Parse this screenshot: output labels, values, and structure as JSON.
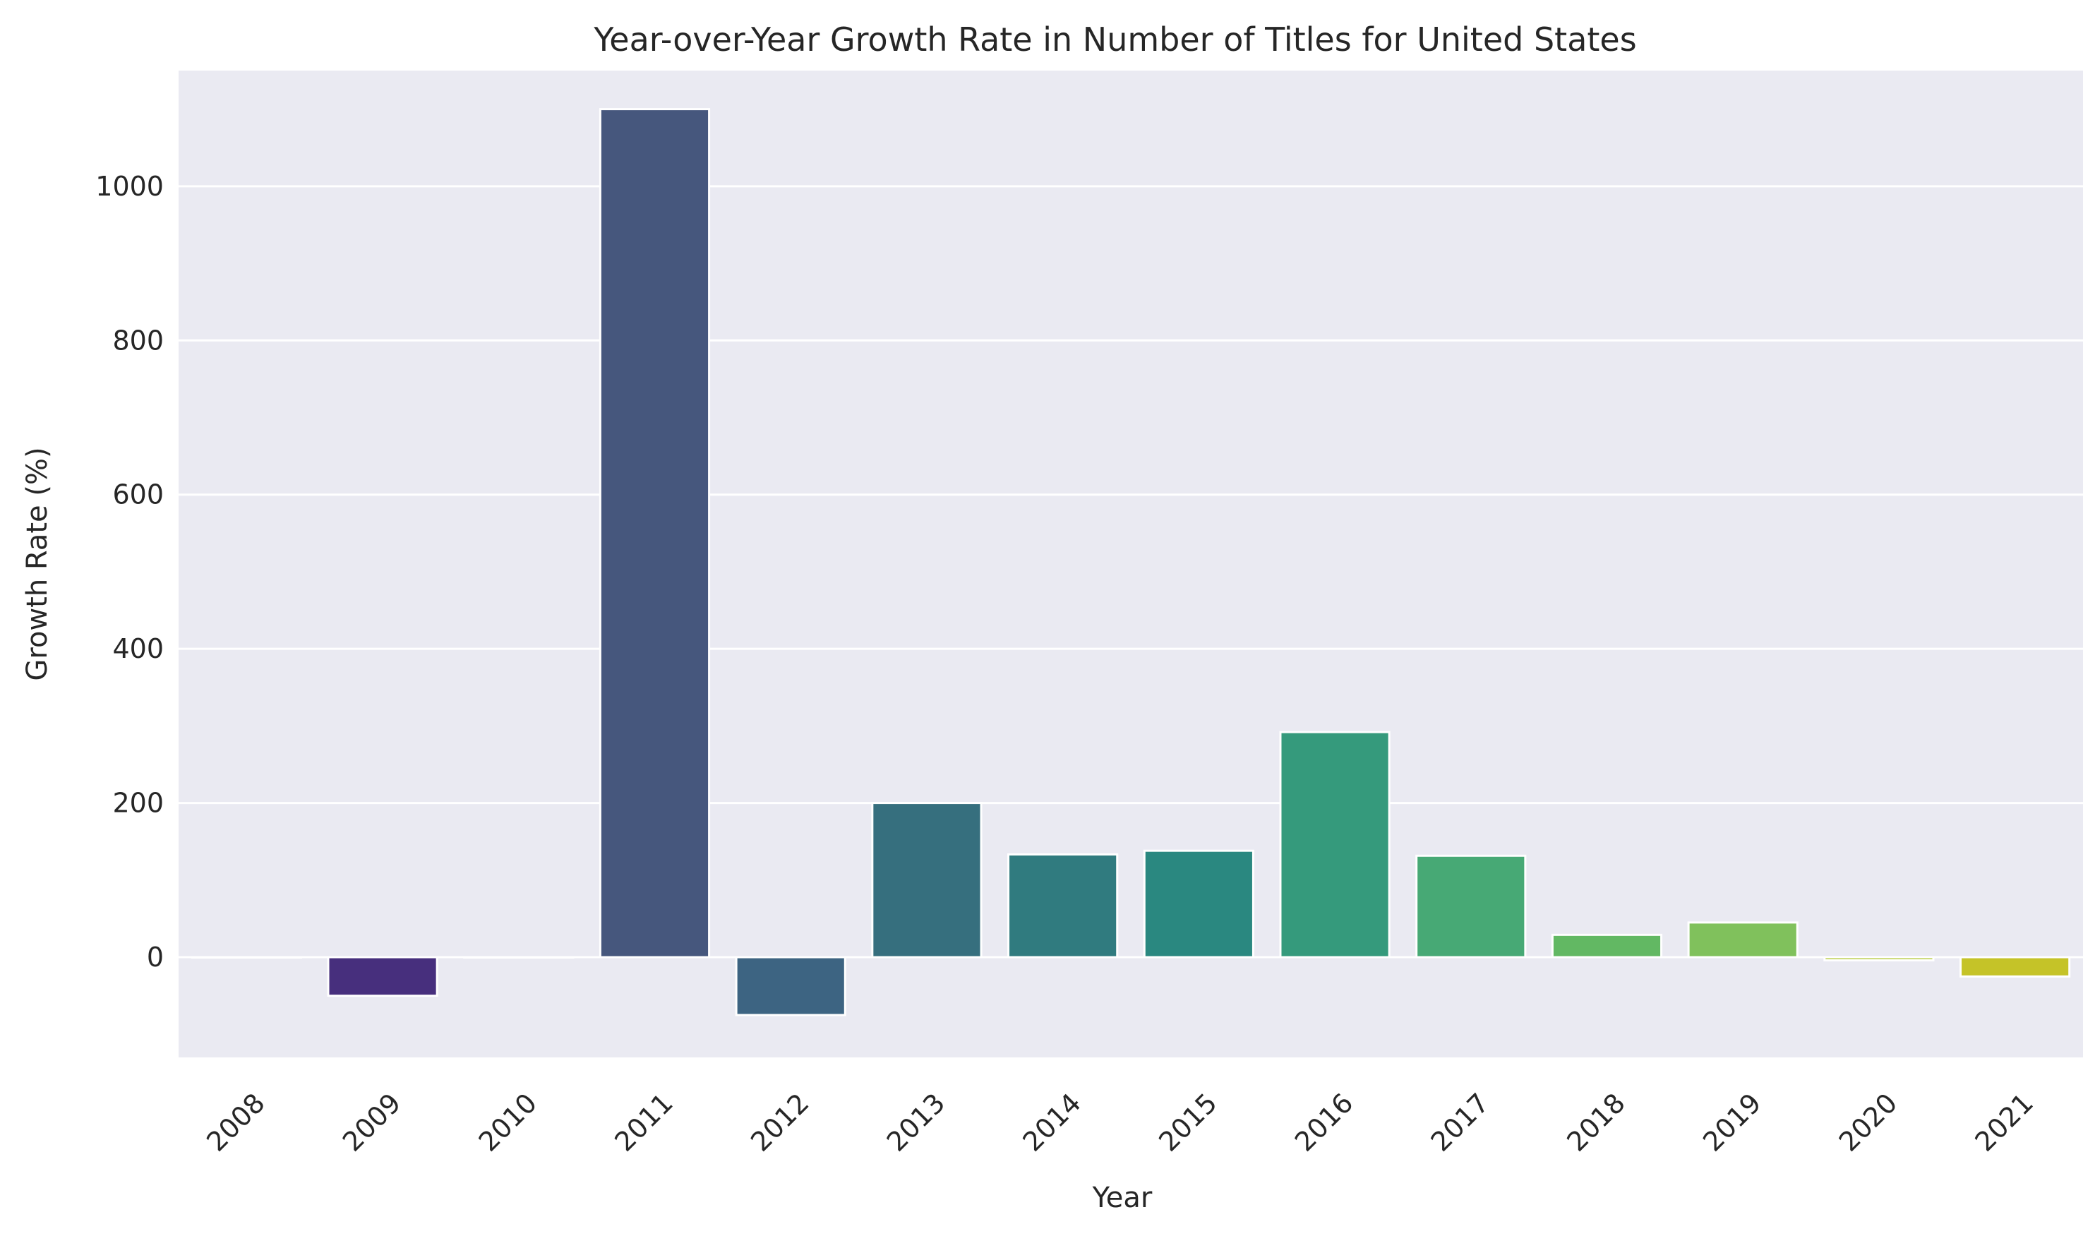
{
  "chart_data": {
    "type": "bar",
    "title": "Year-over-Year Growth Rate in Number of Titles for United States",
    "xlabel": "Year",
    "ylabel": "Growth Rate (%)",
    "categories": [
      "2008",
      "2009",
      "2010",
      "2011",
      "2012",
      "2013",
      "2014",
      "2015",
      "2016",
      "2017",
      "2018",
      "2019",
      "2020",
      "2021"
    ],
    "values": [
      0,
      -50,
      0,
      1100,
      -75,
      200,
      133.3,
      138.1,
      292,
      131.6,
      29,
      45,
      -4,
      -25
    ],
    "colors": [
      "#440154",
      "#472f7d",
      "#3e4a89",
      "#46577d",
      "#3d6482",
      "#366f7e",
      "#307b7f",
      "#2a8880",
      "#359a7c",
      "#47a975",
      "#62b863",
      "#80c15c",
      "#b4c736",
      "#c5c328"
    ],
    "ylim": [
      -130,
      1150
    ],
    "yticks": [
      0,
      200,
      400,
      600,
      800,
      1000
    ],
    "grid": true,
    "legend": "none",
    "background": "#eaeaf2",
    "grid_color": "#ffffff"
  }
}
